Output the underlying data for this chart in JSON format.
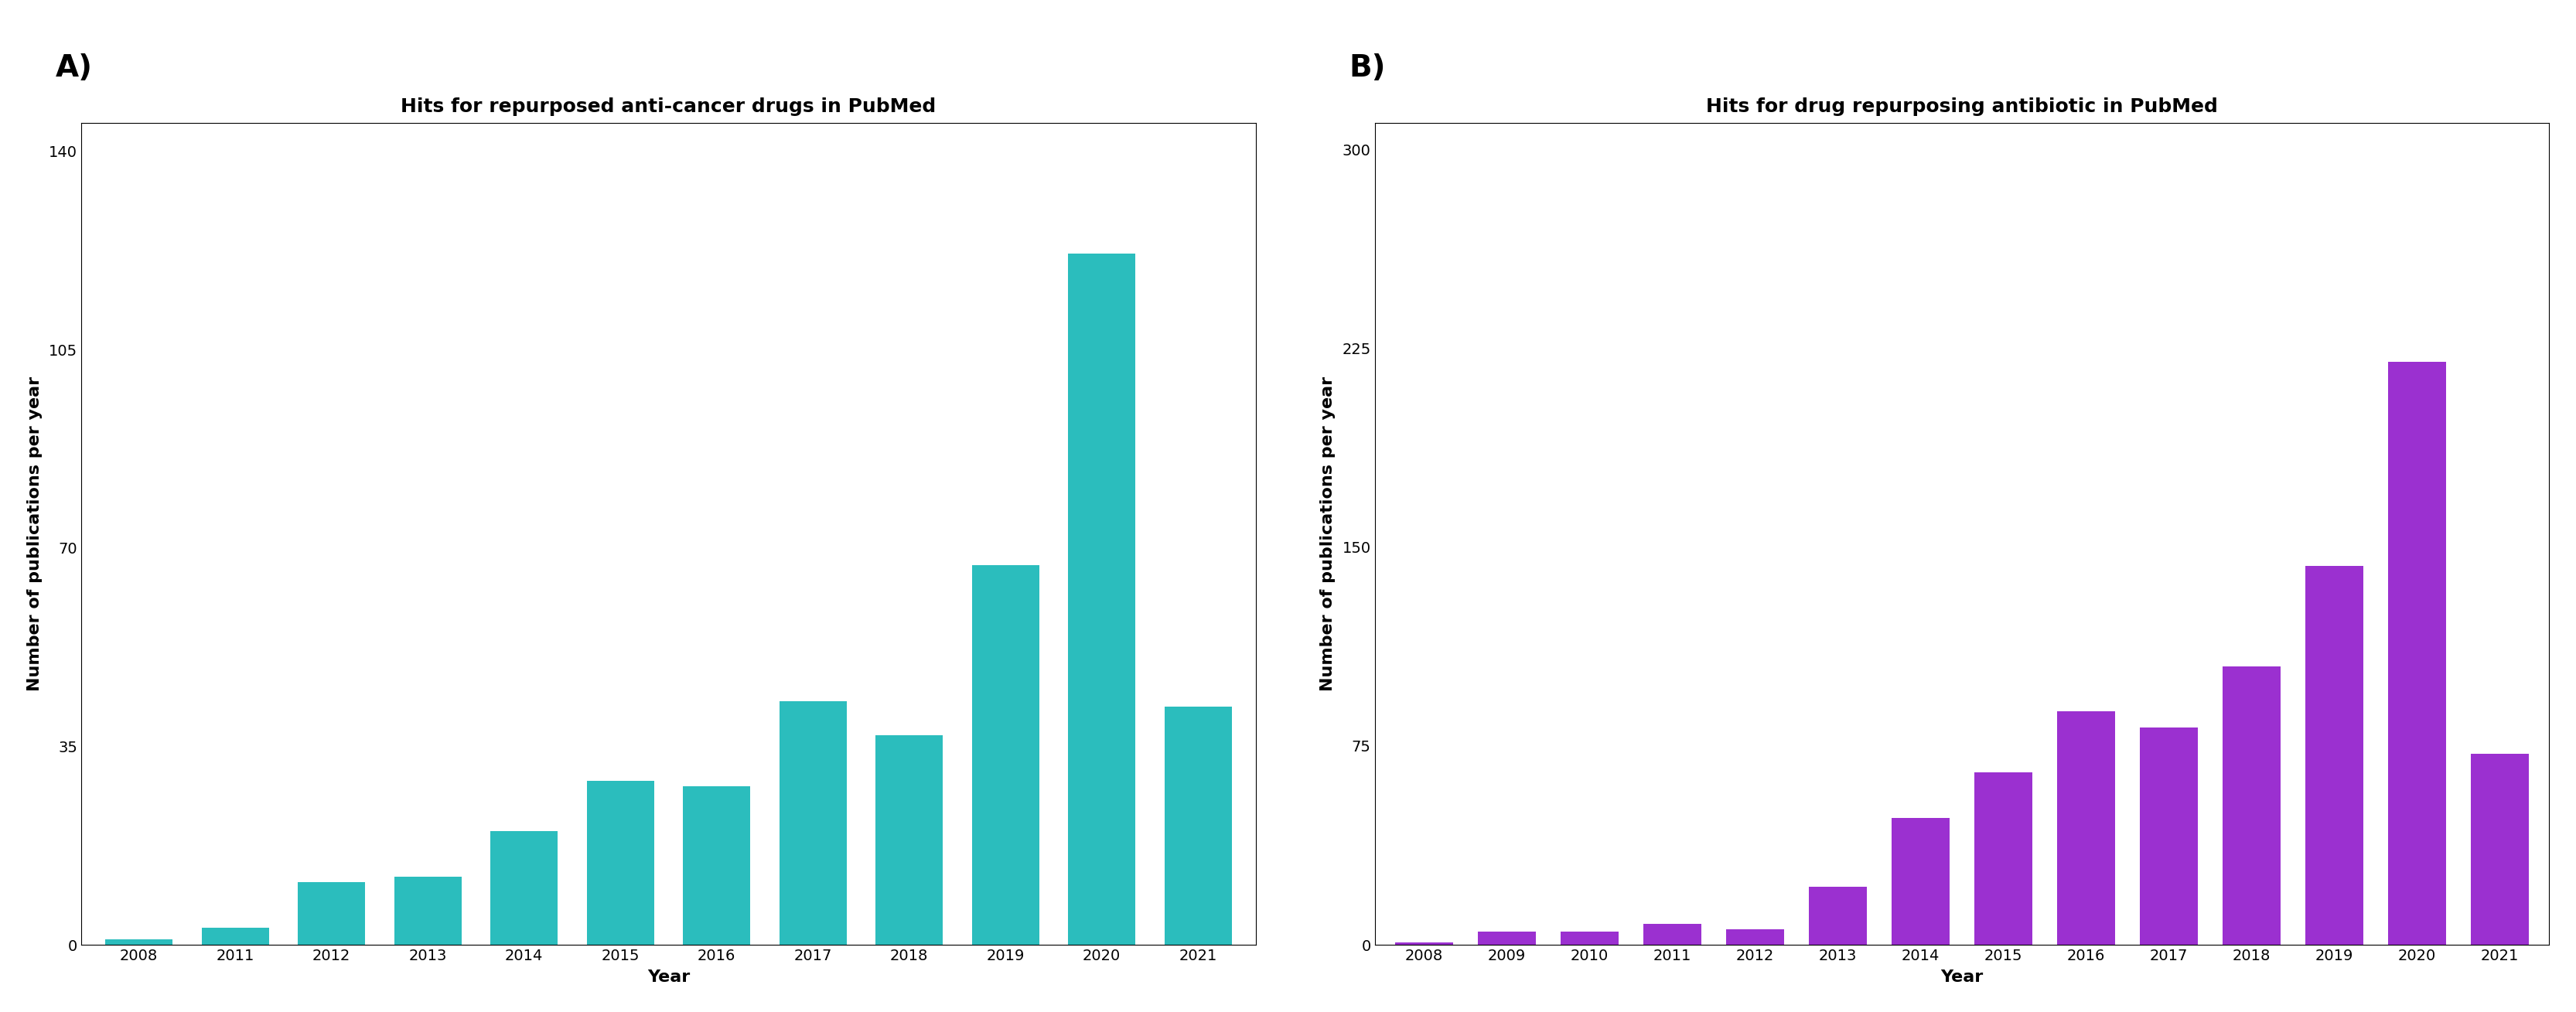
{
  "chart_a": {
    "title": "Hits for repurposed anti-cancer drugs in PubMed",
    "xlabel": "Year",
    "ylabel": "Number of publications per year",
    "categories": [
      "2008",
      "2011",
      "2012",
      "2013",
      "2014",
      "2015",
      "2016",
      "2017",
      "2018",
      "2019",
      "2020",
      "2021"
    ],
    "values": [
      1,
      3,
      11,
      12,
      20,
      29,
      28,
      43,
      37,
      67,
      122,
      42
    ],
    "bar_color": "#2bbdbd",
    "ylim": [
      0,
      145
    ],
    "yticks": [
      0,
      35,
      70,
      105,
      140
    ],
    "panel_label": "A)"
  },
  "chart_b": {
    "title": "Hits for drug repurposing antibiotic in PubMed",
    "xlabel": "Year",
    "ylabel": "Number of publications per year",
    "categories": [
      "2008",
      "2009",
      "2010",
      "2011",
      "2012",
      "2013",
      "2014",
      "2015",
      "2016",
      "2017",
      "2018",
      "2019",
      "2020",
      "2021"
    ],
    "values": [
      1,
      5,
      5,
      8,
      6,
      22,
      48,
      65,
      88,
      82,
      105,
      143,
      220,
      72
    ],
    "bar_color": "#9b30d0",
    "ylim": [
      0,
      310
    ],
    "yticks": [
      0,
      75,
      150,
      225,
      300
    ],
    "panel_label": "B)"
  },
  "fig_width": 33.31,
  "fig_height": 13.09,
  "background_color": "#ffffff",
  "title_fontsize": 18,
  "axis_label_fontsize": 16,
  "tick_fontsize": 14,
  "panel_label_fontsize": 28
}
